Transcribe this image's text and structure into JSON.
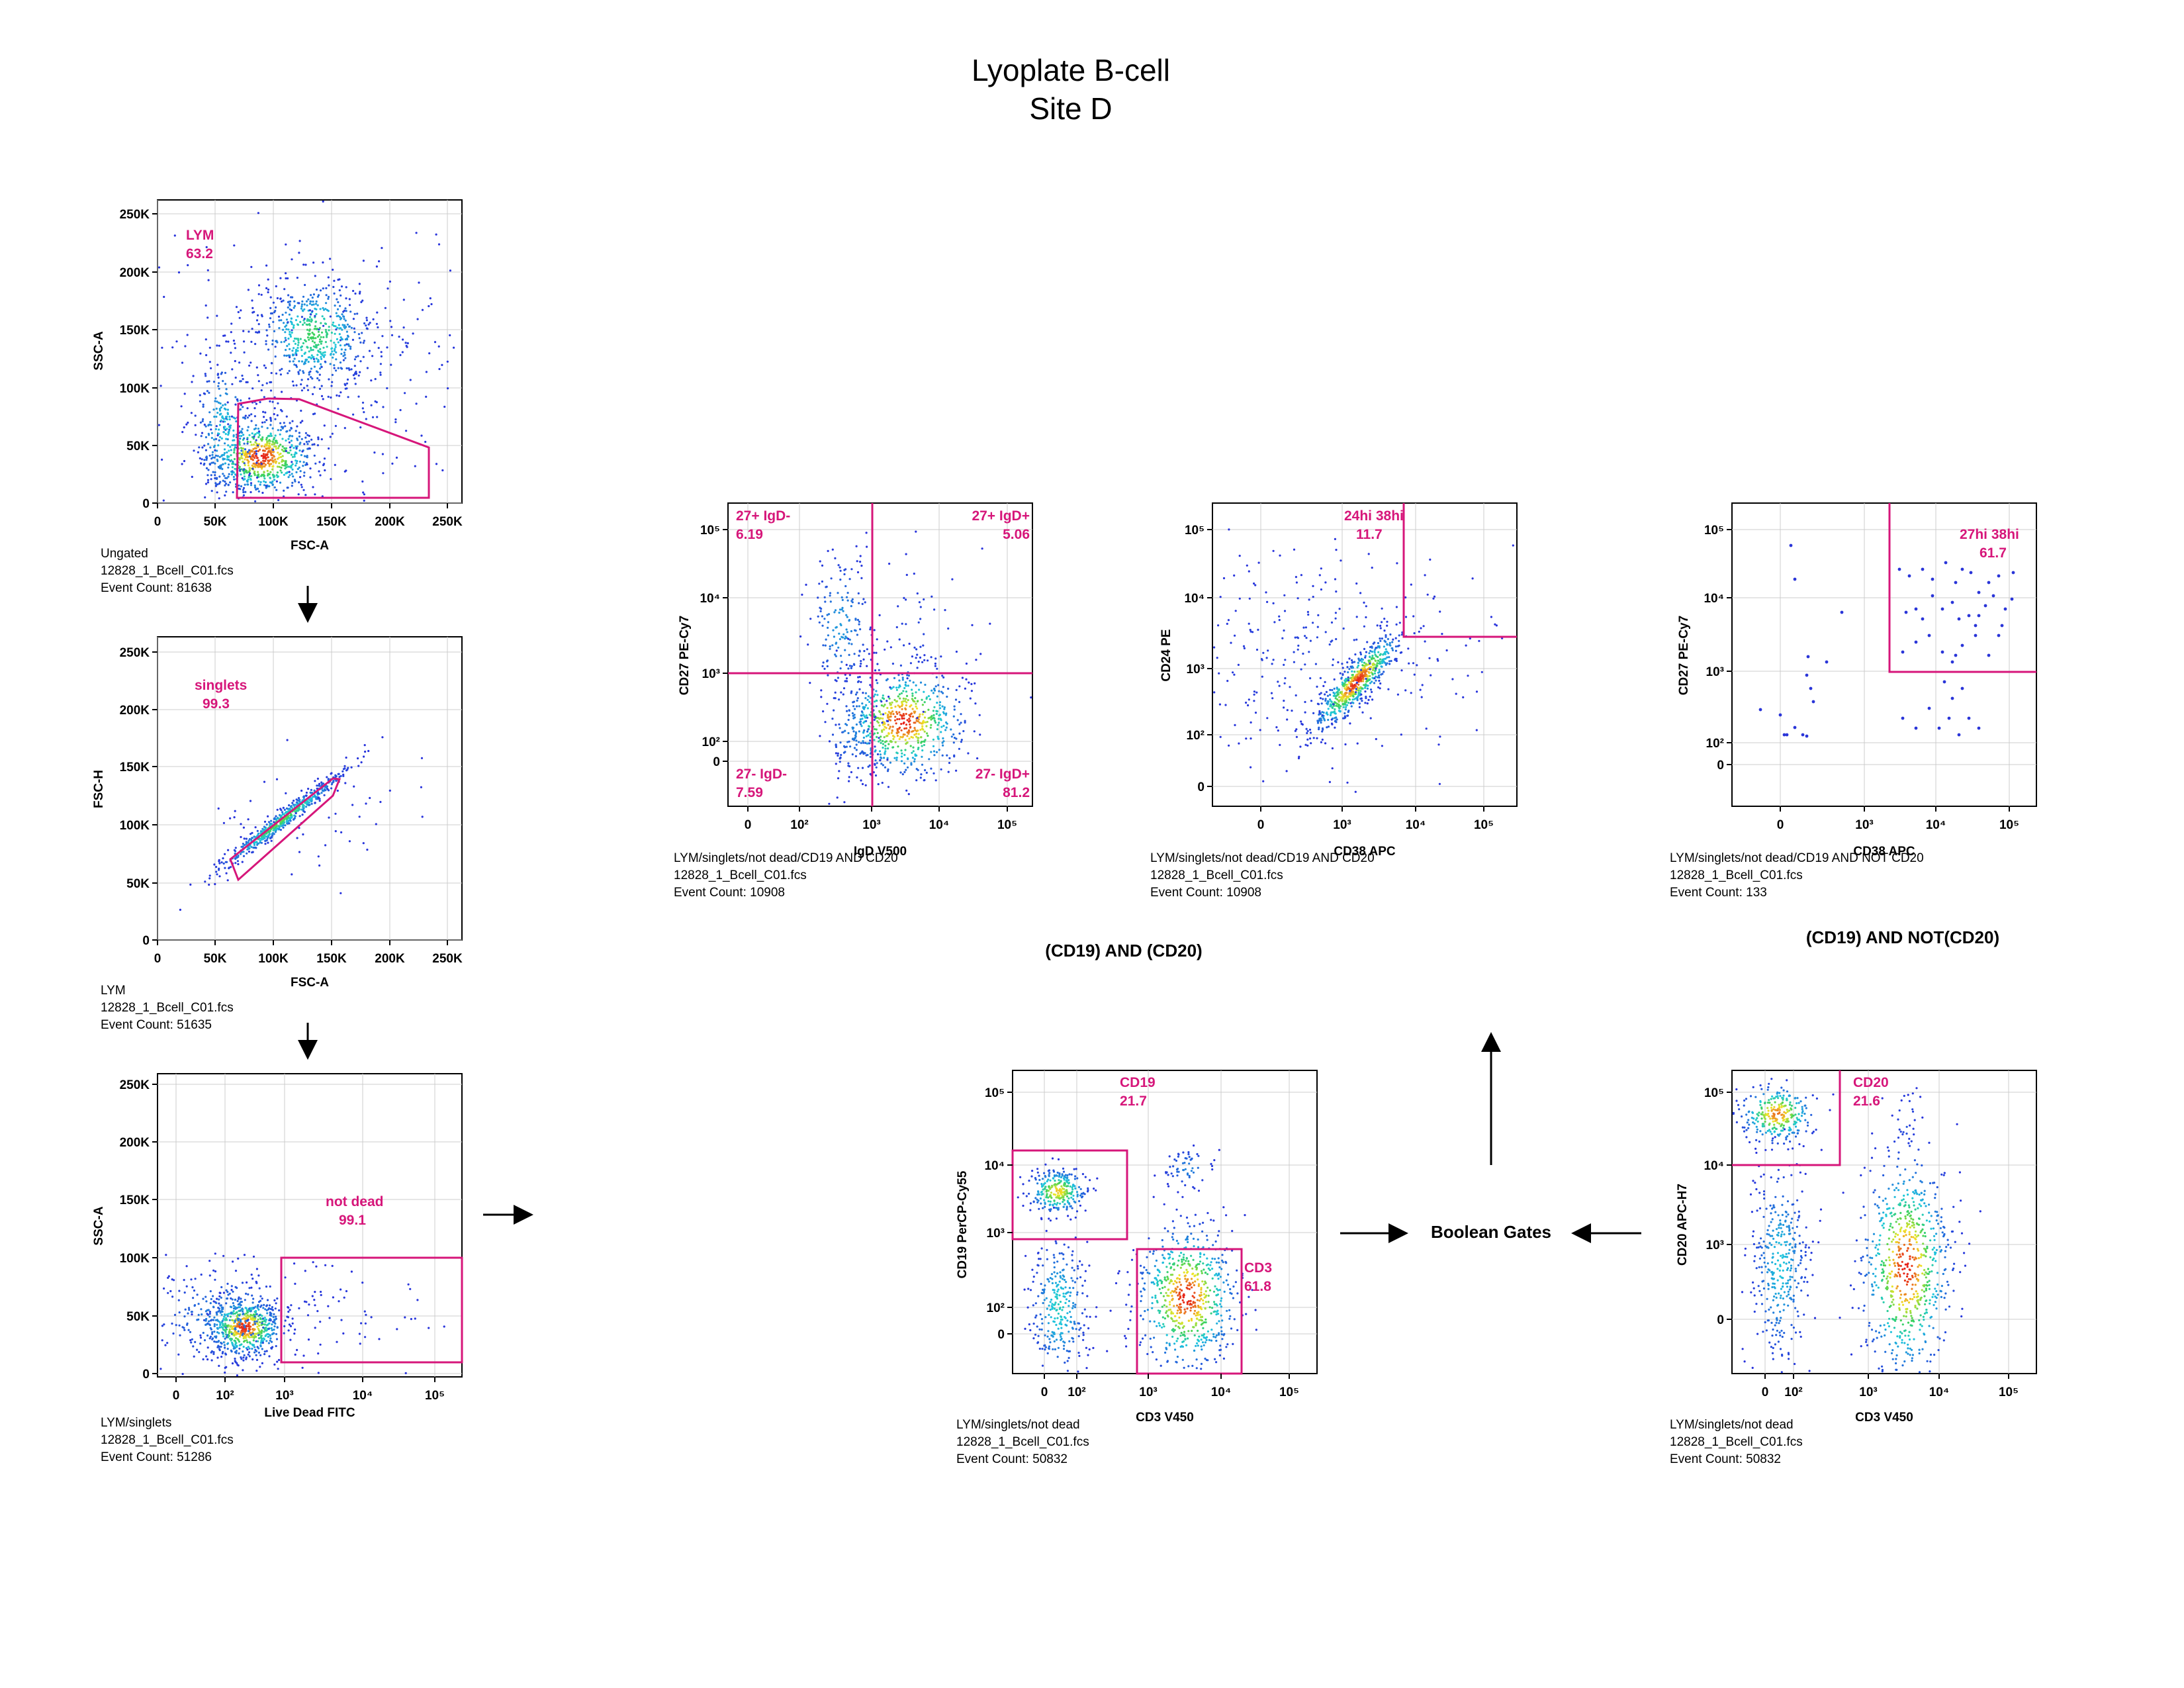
{
  "header": {
    "title": "Lyoplate B-cell",
    "subtitle": "Site D"
  },
  "colors": {
    "gate": "#d6167a",
    "dot_low": "#2a35d8",
    "dot_mid": "#22c9a0",
    "dot_high": "#e8201c",
    "grid": "#cccccc"
  },
  "plots": [
    {
      "id": "p1",
      "x_label": "FSC-A",
      "y_label": "SSC-A",
      "x_ticks": [
        "0",
        "50K",
        "100K",
        "150K",
        "200K",
        "250K"
      ],
      "y_ticks": [
        "250K",
        "200K",
        "150K",
        "100K",
        "50K",
        "0"
      ],
      "gates": [
        {
          "name": "LYM",
          "value": "63.2"
        }
      ],
      "caption": [
        "Ungated",
        "12828_1_Bcell_C01.fcs",
        "Event Count: 81638"
      ]
    },
    {
      "id": "p2",
      "x_label": "FSC-A",
      "y_label": "FSC-H",
      "x_ticks": [
        "0",
        "50K",
        "100K",
        "150K",
        "200K",
        "250K"
      ],
      "y_ticks": [
        "250K",
        "200K",
        "150K",
        "100K",
        "50K",
        "0"
      ],
      "gates": [
        {
          "name": "singlets",
          "value": "99.3"
        }
      ],
      "caption": [
        "LYM",
        "12828_1_Bcell_C01.fcs",
        "Event Count: 51635"
      ]
    },
    {
      "id": "p3",
      "x_label": "Live Dead FITC",
      "y_label": "SSC-A",
      "x_ticks": [
        "0",
        "10²",
        "10³",
        "10⁴",
        "10⁵"
      ],
      "y_ticks": [
        "250K",
        "200K",
        "150K",
        "100K",
        "50K",
        "0"
      ],
      "gates": [
        {
          "name": "not dead",
          "value": "99.1"
        }
      ],
      "caption": [
        "LYM/singlets",
        "12828_1_Bcell_C01.fcs",
        "Event Count: 51286"
      ]
    },
    {
      "id": "p4",
      "x_label": "IgD V500",
      "y_label": "CD27 PE-Cy7",
      "x_ticks": [
        "0",
        "10²",
        "10³",
        "10⁴",
        "10⁵"
      ],
      "y_ticks": [
        "10⁵",
        "10⁴",
        "10³",
        "10²",
        "0"
      ],
      "gates": [
        {
          "name": "27+ IgD-",
          "value": "6.19"
        },
        {
          "name": "27+ IgD+",
          "value": "5.06"
        },
        {
          "name": "27- IgD-",
          "value": "7.59"
        },
        {
          "name": "27- IgD+",
          "value": "81.2"
        }
      ],
      "caption": [
        "LYM/singlets/not dead/CD19 AND CD20",
        "12828_1_Bcell_C01.fcs",
        "Event Count: 10908"
      ]
    },
    {
      "id": "p5",
      "x_label": "CD38 APC",
      "y_label": "CD24 PE",
      "x_ticks": [
        "0",
        "10³",
        "10⁴",
        "10⁵"
      ],
      "y_ticks": [
        "10⁵",
        "10⁴",
        "10³",
        "10²",
        "0"
      ],
      "gates": [
        {
          "name": "24hi 38hi",
          "value": "11.7"
        }
      ],
      "caption": [
        "LYM/singlets/not dead/CD19 AND CD20",
        "12828_1_Bcell_C01.fcs",
        "Event Count: 10908"
      ]
    },
    {
      "id": "p6",
      "x_label": "CD38 APC",
      "y_label": "CD27 PE-Cy7",
      "x_ticks": [
        "0",
        "10³",
        "10⁴",
        "10⁵"
      ],
      "y_ticks": [
        "10⁵",
        "10⁴",
        "10³",
        "10²",
        "0"
      ],
      "gates": [
        {
          "name": "27hi 38hi",
          "value": "61.7"
        }
      ],
      "caption": [
        "LYM/singlets/not dead/CD19 AND NOT CD20",
        "12828_1_Bcell_C01.fcs",
        "Event Count: 133"
      ]
    },
    {
      "id": "p7",
      "x_label": "CD3 V450",
      "y_label": "CD19 PerCP-Cy55",
      "x_ticks": [
        "0",
        "10²",
        "10³",
        "10⁴",
        "10⁵"
      ],
      "y_ticks": [
        "10⁵",
        "10⁴",
        "10³",
        "10²",
        "0"
      ],
      "gates": [
        {
          "name": "CD19",
          "value": "21.7"
        },
        {
          "name": "CD3",
          "value": "61.8"
        }
      ],
      "caption": [
        "LYM/singlets/not dead",
        "12828_1_Bcell_C01.fcs",
        "Event Count: 50832"
      ]
    },
    {
      "id": "p8",
      "x_label": "CD3 V450",
      "y_label": "CD20 APC-H7",
      "x_ticks": [
        "0",
        "10²",
        "10³",
        "10⁴",
        "10⁵"
      ],
      "y_ticks": [
        "10⁵",
        "10⁴",
        "10³",
        "0"
      ],
      "gates": [
        {
          "name": "CD20",
          "value": "21.6"
        }
      ],
      "caption": [
        "LYM/singlets/not dead",
        "12828_1_Bcell_C01.fcs",
        "Event Count: 50832"
      ]
    }
  ],
  "labels": {
    "and_gate": "(CD19) AND (CD20)",
    "and_not_gate": "(CD19) AND NOT(CD20)",
    "boolean": "Boolean Gates"
  },
  "chart_data": [
    {
      "type": "scatter",
      "title": "",
      "xlabel": "FSC-A",
      "ylabel": "SSC-A",
      "xlim": [
        0,
        262144
      ],
      "ylim": [
        0,
        262144
      ],
      "events": 81638,
      "gates": [
        {
          "name": "LYM",
          "percent": 63.2
        }
      ]
    },
    {
      "type": "scatter",
      "title": "",
      "xlabel": "FSC-A",
      "ylabel": "FSC-H",
      "xlim": [
        0,
        262144
      ],
      "ylim": [
        0,
        262144
      ],
      "events": 51635,
      "gates": [
        {
          "name": "singlets",
          "percent": 99.3
        }
      ]
    },
    {
      "type": "scatter",
      "title": "",
      "xlabel": "Live Dead FITC",
      "ylabel": "SSC-A",
      "x_scale": "biexponential",
      "ylim": [
        0,
        262144
      ],
      "events": 51286,
      "gates": [
        {
          "name": "not dead",
          "percent": 99.1
        }
      ]
    },
    {
      "type": "scatter",
      "title": "",
      "xlabel": "IgD V500",
      "ylabel": "CD27 PE-Cy7",
      "x_scale": "biexponential",
      "y_scale": "biexponential",
      "events": 10908,
      "gates": [
        {
          "name": "27+ IgD-",
          "percent": 6.19
        },
        {
          "name": "27+ IgD+",
          "percent": 5.06
        },
        {
          "name": "27- IgD-",
          "percent": 7.59
        },
        {
          "name": "27- IgD+",
          "percent": 81.2
        }
      ]
    },
    {
      "type": "scatter",
      "title": "",
      "xlabel": "CD38 APC",
      "ylabel": "CD24 PE",
      "x_scale": "biexponential",
      "y_scale": "biexponential",
      "events": 10908,
      "gates": [
        {
          "name": "24hi 38hi",
          "percent": 11.7
        }
      ]
    },
    {
      "type": "scatter",
      "title": "",
      "xlabel": "CD38 APC",
      "ylabel": "CD27 PE-Cy7",
      "x_scale": "biexponential",
      "y_scale": "biexponential",
      "events": 133,
      "gates": [
        {
          "name": "27hi 38hi",
          "percent": 61.7
        }
      ]
    },
    {
      "type": "scatter",
      "title": "",
      "xlabel": "CD3 V450",
      "ylabel": "CD19 PerCP-Cy55",
      "x_scale": "biexponential",
      "y_scale": "biexponential",
      "events": 50832,
      "gates": [
        {
          "name": "CD19",
          "percent": 21.7
        },
        {
          "name": "CD3",
          "percent": 61.8
        }
      ]
    },
    {
      "type": "scatter",
      "title": "",
      "xlabel": "CD3 V450",
      "ylabel": "CD20 APC-H7",
      "x_scale": "biexponential",
      "y_scale": "biexponential",
      "events": 50832,
      "gates": [
        {
          "name": "CD20",
          "percent": 21.6
        }
      ]
    }
  ]
}
